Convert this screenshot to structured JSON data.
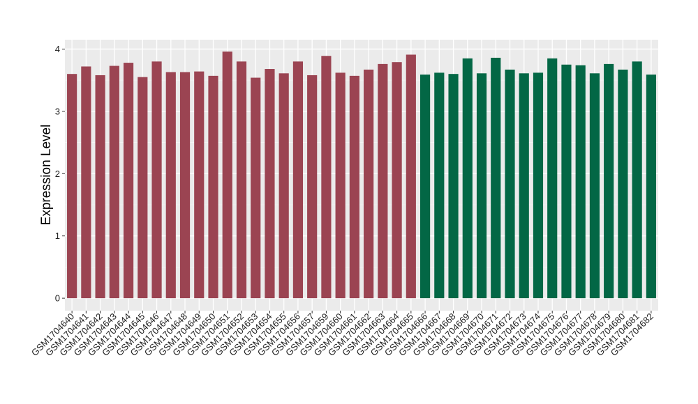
{
  "chart_data": {
    "type": "bar",
    "title": "",
    "xlabel": "",
    "ylabel": "Expression Level",
    "ylim": [
      -0.2,
      4.15
    ],
    "yticks": [
      0,
      1,
      2,
      3,
      4
    ],
    "grid": true,
    "panel_color": "#ebebeb",
    "categories": [
      "GSM1704640",
      "GSM1704641",
      "GSM1704642",
      "GSM1704643",
      "GSM1704644",
      "GSM1704645",
      "GSM1704646",
      "GSM1704647",
      "GSM1704648",
      "GSM1704649",
      "GSM1704650",
      "GSM1704651",
      "GSM1704652",
      "GSM1704653",
      "GSM1704654",
      "GSM1704655",
      "GSM1704656",
      "GSM1704657",
      "GSM1704659",
      "GSM1704660",
      "GSM1704661",
      "GSM1704662",
      "GSM1704663",
      "GSM1704664",
      "GSM1704665",
      "GSM1704666",
      "GSM1704667",
      "GSM1704668",
      "GSM1704669",
      "GSM1704670",
      "GSM1704671",
      "GSM1704672",
      "GSM1704673",
      "GSM1704674",
      "GSM1704675",
      "GSM1704676",
      "GSM1704677",
      "GSM1704678",
      "GSM1704679",
      "GSM1704680",
      "GSM1704681",
      "GSM1704682"
    ],
    "values": [
      3.6,
      3.72,
      3.58,
      3.73,
      3.78,
      3.55,
      3.8,
      3.63,
      3.63,
      3.64,
      3.57,
      3.96,
      3.8,
      3.54,
      3.68,
      3.61,
      3.8,
      3.58,
      3.89,
      3.62,
      3.57,
      3.67,
      3.76,
      3.79,
      3.91,
      3.59,
      3.62,
      3.6,
      3.85,
      3.61,
      3.86,
      3.67,
      3.61,
      3.62,
      3.85,
      3.75,
      3.74,
      3.61,
      3.76,
      3.67,
      3.8,
      3.59
    ],
    "groups": [
      {
        "color": "#9b4452",
        "count": 25
      },
      {
        "color": "#036745",
        "count": 17
      }
    ]
  }
}
